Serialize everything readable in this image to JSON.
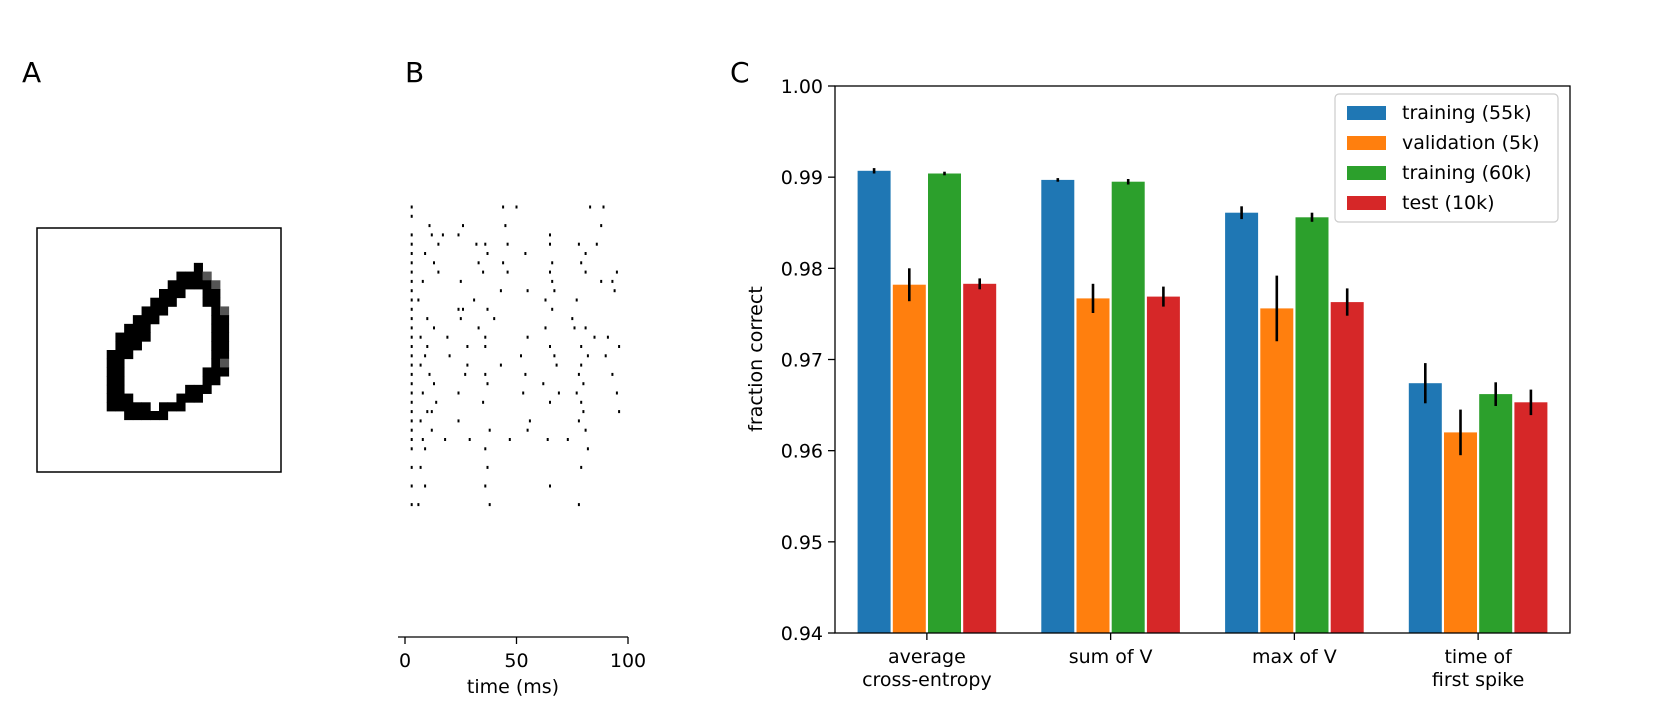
{
  "panels": {
    "a": {
      "label": "A"
    },
    "b": {
      "label": "B"
    },
    "c": {
      "label": "C"
    }
  },
  "digit_image": {
    "description_label": "MNIST digit 0",
    "pixels": [
      "............................",
      "............................",
      "............................",
      "............................",
      "..................#.........",
      "................###%........",
      "...............#####%.......",
      "..............###..##.......",
      ".............###...##.......",
      "............###.....#%......",
      "...........###......##......",
      "..........###.......##......",
      ".........####.......##......",
      ".........###........##......",
      "........###.........##......",
      "........##..........#%......",
      "........##.........###......",
      "........##.........##.......",
      "........##.......###........",
      "........###.....###.........",
      "........#####.###...........",
      "..........#####.............",
      "............................",
      "............................",
      "............................",
      "............................",
      "............................",
      "............................"
    ]
  },
  "raster": {
    "x_label": "time (ms)",
    "x_ticks": [
      "0",
      "50",
      "100"
    ],
    "xlim": [
      0,
      100
    ],
    "n_neurons": 40,
    "spikes": [
      [
        3,
        0
      ],
      [
        44,
        0
      ],
      [
        50,
        0
      ],
      [
        83,
        0
      ],
      [
        89,
        0
      ],
      [
        3,
        1
      ],
      [
        11,
        2
      ],
      [
        26,
        2
      ],
      [
        45,
        2
      ],
      [
        88,
        2
      ],
      [
        3,
        3
      ],
      [
        12,
        3
      ],
      [
        17,
        3
      ],
      [
        24,
        3
      ],
      [
        65,
        3
      ],
      [
        3,
        4
      ],
      [
        15,
        4
      ],
      [
        32,
        4
      ],
      [
        36,
        4
      ],
      [
        46,
        4
      ],
      [
        65,
        4
      ],
      [
        78,
        4
      ],
      [
        86,
        4
      ],
      [
        3,
        5
      ],
      [
        9,
        5
      ],
      [
        37,
        5
      ],
      [
        54,
        5
      ],
      [
        81,
        5
      ],
      [
        3,
        6
      ],
      [
        13,
        6
      ],
      [
        33,
        6
      ],
      [
        44,
        6
      ],
      [
        66,
        6
      ],
      [
        79,
        6
      ],
      [
        3,
        7
      ],
      [
        15,
        7
      ],
      [
        35,
        7
      ],
      [
        46,
        7
      ],
      [
        65,
        7
      ],
      [
        81,
        7
      ],
      [
        95,
        7
      ],
      [
        3,
        8
      ],
      [
        8,
        8
      ],
      [
        25,
        8
      ],
      [
        66,
        8
      ],
      [
        88,
        8
      ],
      [
        93,
        8
      ],
      [
        3,
        9
      ],
      [
        43,
        9
      ],
      [
        55,
        9
      ],
      [
        67,
        9
      ],
      [
        94,
        9
      ],
      [
        3,
        10
      ],
      [
        6,
        10
      ],
      [
        31,
        10
      ],
      [
        63,
        10
      ],
      [
        77,
        10
      ],
      [
        3,
        11
      ],
      [
        24,
        11
      ],
      [
        26,
        11
      ],
      [
        37,
        11
      ],
      [
        66,
        11
      ],
      [
        3,
        12
      ],
      [
        10,
        12
      ],
      [
        25,
        12
      ],
      [
        40,
        12
      ],
      [
        75,
        12
      ],
      [
        3,
        13
      ],
      [
        13,
        13
      ],
      [
        33,
        13
      ],
      [
        63,
        13
      ],
      [
        76,
        13
      ],
      [
        81,
        13
      ],
      [
        3,
        14
      ],
      [
        7,
        14
      ],
      [
        19,
        14
      ],
      [
        36,
        14
      ],
      [
        55,
        14
      ],
      [
        85,
        14
      ],
      [
        91,
        14
      ],
      [
        3,
        15
      ],
      [
        10,
        15
      ],
      [
        28,
        15
      ],
      [
        36,
        15
      ],
      [
        65,
        15
      ],
      [
        79,
        15
      ],
      [
        96,
        15
      ],
      [
        3,
        16
      ],
      [
        9,
        16
      ],
      [
        20,
        16
      ],
      [
        52,
        16
      ],
      [
        67,
        16
      ],
      [
        82,
        16
      ],
      [
        90,
        16
      ],
      [
        3,
        17
      ],
      [
        7,
        17
      ],
      [
        28,
        17
      ],
      [
        43,
        17
      ],
      [
        68,
        17
      ],
      [
        79,
        17
      ],
      [
        3,
        18
      ],
      [
        11,
        18
      ],
      [
        27,
        18
      ],
      [
        36,
        18
      ],
      [
        54,
        18
      ],
      [
        78,
        18
      ],
      [
        93,
        18
      ],
      [
        3,
        19
      ],
      [
        13,
        19
      ],
      [
        37,
        19
      ],
      [
        62,
        19
      ],
      [
        80,
        19
      ],
      [
        3,
        20
      ],
      [
        8,
        20
      ],
      [
        24,
        20
      ],
      [
        53,
        20
      ],
      [
        69,
        20
      ],
      [
        77,
        20
      ],
      [
        95,
        20
      ],
      [
        3,
        21
      ],
      [
        14,
        21
      ],
      [
        35,
        21
      ],
      [
        65,
        21
      ],
      [
        79,
        21
      ],
      [
        3,
        22
      ],
      [
        10,
        22
      ],
      [
        12,
        22
      ],
      [
        80,
        22
      ],
      [
        96,
        22
      ],
      [
        3,
        23
      ],
      [
        7,
        23
      ],
      [
        24,
        23
      ],
      [
        56,
        23
      ],
      [
        78,
        23
      ],
      [
        3,
        24
      ],
      [
        12,
        24
      ],
      [
        38,
        24
      ],
      [
        55,
        24
      ],
      [
        81,
        24
      ],
      [
        3,
        25
      ],
      [
        8,
        25
      ],
      [
        18,
        25
      ],
      [
        29,
        25
      ],
      [
        47,
        25
      ],
      [
        64,
        25
      ],
      [
        73,
        25
      ],
      [
        3,
        26
      ],
      [
        9,
        26
      ],
      [
        36,
        26
      ],
      [
        82,
        26
      ],
      [
        3,
        28
      ],
      [
        7,
        28
      ],
      [
        37,
        28
      ],
      [
        79,
        28
      ],
      [
        3,
        30
      ],
      [
        9,
        30
      ],
      [
        36,
        30
      ],
      [
        65,
        30
      ],
      [
        3,
        32
      ],
      [
        6,
        32
      ],
      [
        38,
        32
      ],
      [
        78,
        32
      ]
    ]
  },
  "chart_data": {
    "type": "bar",
    "title": "",
    "xlabel": "",
    "ylabel": "fraction correct",
    "ylim": [
      0.94,
      1.0
    ],
    "yticks": [
      "0.94",
      "0.95",
      "0.96",
      "0.97",
      "0.98",
      "0.99",
      "1.00"
    ],
    "ytick_values": [
      0.94,
      0.95,
      0.96,
      0.97,
      0.98,
      0.99,
      1.0
    ],
    "categories": [
      [
        "average",
        "cross-entropy"
      ],
      [
        "sum of V"
      ],
      [
        "max of V"
      ],
      [
        "time of",
        "first spike"
      ]
    ],
    "legend_position": "top-right",
    "series": [
      {
        "name": "training (55k)",
        "color": "#1f77b4",
        "values": [
          0.9907,
          0.9897,
          0.9861,
          0.9674
        ],
        "errors": [
          0.0003,
          0.0002,
          0.0007,
          0.0022
        ]
      },
      {
        "name": "validation (5k)",
        "color": "#ff7f0e",
        "values": [
          0.9782,
          0.9767,
          0.9756,
          0.962
        ],
        "errors": [
          0.0018,
          0.0016,
          0.0036,
          0.0025
        ]
      },
      {
        "name": "training (60k)",
        "color": "#2ca02c",
        "values": [
          0.9904,
          0.9895,
          0.9856,
          0.9662
        ],
        "errors": [
          0.0002,
          0.0003,
          0.0005,
          0.0013
        ]
      },
      {
        "name": "test (10k)",
        "color": "#d62728",
        "values": [
          0.9783,
          0.9769,
          0.9763,
          0.9653
        ],
        "errors": [
          0.0006,
          0.0011,
          0.0015,
          0.0014
        ]
      }
    ]
  }
}
